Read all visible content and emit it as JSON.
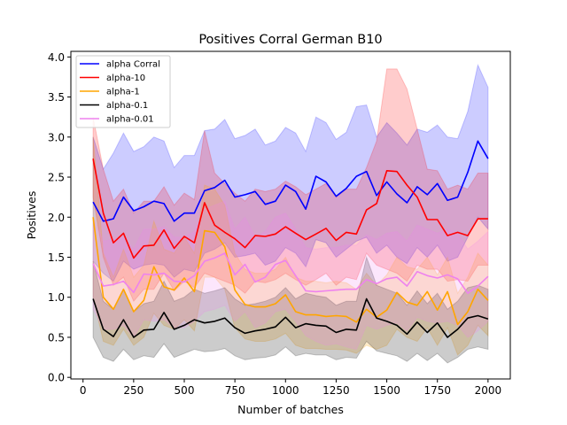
{
  "chart_data": {
    "type": "line",
    "title": "Positives Corral German B10",
    "xlabel": "Number of batches",
    "ylabel": "Positives",
    "xlim": [
      -60,
      2110
    ],
    "ylim": [
      -0.02,
      4.07
    ],
    "xticks": [
      0,
      250,
      500,
      750,
      1000,
      1250,
      1500,
      1750,
      2000
    ],
    "yticks": [
      0.0,
      0.5,
      1.0,
      1.5,
      2.0,
      2.5,
      3.0,
      3.5,
      4.0
    ],
    "xtick_labels": [
      "0",
      "250",
      "500",
      "750",
      "1000",
      "1250",
      "1500",
      "1750",
      "2000"
    ],
    "ytick_labels": [
      "0.0",
      "0.5",
      "1.0",
      "1.5",
      "2.0",
      "2.5",
      "3.0",
      "3.5",
      "4.0"
    ],
    "grid": false,
    "legend_position": "upper-left",
    "x": [
      50,
      100,
      150,
      200,
      250,
      300,
      350,
      400,
      450,
      500,
      550,
      600,
      650,
      700,
      750,
      800,
      850,
      900,
      950,
      1000,
      1050,
      1100,
      1150,
      1200,
      1250,
      1300,
      1350,
      1400,
      1450,
      1500,
      1550,
      1600,
      1650,
      1700,
      1750,
      1800,
      1850,
      1900,
      1950,
      2000
    ],
    "series": [
      {
        "name": "alpha Corral",
        "color": "#0000ff",
        "values": [
          2.19,
          1.95,
          1.98,
          2.25,
          2.08,
          2.13,
          2.2,
          2.17,
          1.95,
          2.05,
          2.05,
          2.33,
          2.37,
          2.46,
          2.25,
          2.28,
          2.32,
          2.16,
          2.2,
          2.4,
          2.32,
          2.1,
          2.51,
          2.44,
          2.26,
          2.36,
          2.51,
          2.57,
          2.27,
          2.44,
          2.29,
          2.18,
          2.38,
          2.28,
          2.42,
          2.21,
          2.25,
          2.56,
          2.95,
          2.73
        ],
        "upper": [
          3.0,
          2.6,
          2.8,
          3.05,
          2.82,
          2.88,
          3.0,
          2.95,
          2.62,
          2.77,
          2.77,
          3.08,
          3.1,
          3.22,
          2.98,
          3.02,
          3.1,
          2.9,
          2.95,
          3.12,
          3.05,
          2.82,
          3.25,
          3.18,
          2.97,
          3.06,
          3.38,
          3.4,
          3.0,
          3.18,
          3.05,
          2.9,
          3.1,
          3.06,
          3.15,
          3.0,
          2.98,
          3.32,
          3.9,
          3.62
        ],
        "lower": [
          1.45,
          1.3,
          1.2,
          1.45,
          1.35,
          1.4,
          1.42,
          1.4,
          1.25,
          1.35,
          1.32,
          1.55,
          1.6,
          1.68,
          1.5,
          1.52,
          1.55,
          1.4,
          1.45,
          1.62,
          1.55,
          1.38,
          1.72,
          1.68,
          1.5,
          1.6,
          1.7,
          1.75,
          1.55,
          1.65,
          1.5,
          1.42,
          1.62,
          1.5,
          1.65,
          1.45,
          1.5,
          1.75,
          2.0,
          1.85
        ]
      },
      {
        "name": "alpha-10",
        "color": "#ff0000",
        "values": [
          2.73,
          2.05,
          1.68,
          1.8,
          1.49,
          1.64,
          1.65,
          1.84,
          1.61,
          1.76,
          1.68,
          2.18,
          1.9,
          1.81,
          1.73,
          1.62,
          1.77,
          1.76,
          1.79,
          1.88,
          1.8,
          1.72,
          1.79,
          1.86,
          1.71,
          1.81,
          1.79,
          2.09,
          2.17,
          2.58,
          2.57,
          2.4,
          2.25,
          1.97,
          1.97,
          1.77,
          1.81,
          1.77,
          1.98,
          1.98
        ],
        "upper": [
          3.25,
          2.6,
          2.2,
          2.35,
          2.05,
          2.2,
          2.2,
          2.38,
          2.15,
          2.3,
          2.22,
          3.08,
          2.55,
          2.42,
          2.3,
          2.2,
          2.35,
          2.32,
          2.35,
          2.45,
          2.38,
          2.28,
          2.35,
          2.42,
          2.25,
          2.35,
          2.35,
          2.62,
          2.95,
          3.85,
          3.85,
          3.6,
          3.1,
          2.6,
          2.58,
          2.35,
          2.4,
          2.35,
          2.55,
          2.55
        ],
        "lower": [
          2.25,
          1.5,
          1.15,
          1.25,
          0.95,
          1.1,
          1.1,
          1.3,
          1.08,
          1.2,
          1.12,
          1.3,
          1.25,
          1.2,
          1.15,
          1.05,
          1.2,
          1.18,
          1.22,
          1.3,
          1.22,
          1.15,
          1.22,
          1.3,
          1.15,
          1.25,
          1.22,
          1.55,
          1.4,
          1.35,
          1.3,
          1.2,
          1.4,
          1.35,
          1.35,
          1.2,
          1.22,
          1.2,
          1.4,
          1.4
        ]
      },
      {
        "name": "alpha-1",
        "color": "#ffa500",
        "values": [
          2.0,
          1.0,
          0.85,
          1.1,
          0.82,
          0.96,
          1.38,
          1.13,
          1.09,
          1.24,
          1.07,
          1.83,
          1.81,
          1.63,
          1.09,
          0.91,
          0.88,
          0.88,
          0.92,
          1.03,
          0.82,
          0.78,
          0.78,
          0.76,
          0.77,
          0.76,
          0.69,
          0.85,
          0.75,
          0.84,
          1.06,
          0.94,
          0.9,
          1.07,
          0.84,
          1.07,
          0.66,
          0.82,
          1.1,
          0.96
        ],
        "upper": [
          3.0,
          1.55,
          1.25,
          1.6,
          1.25,
          1.4,
          1.95,
          1.6,
          1.55,
          1.75,
          1.55,
          2.4,
          2.35,
          2.15,
          1.55,
          1.35,
          1.3,
          1.3,
          1.35,
          1.5,
          1.25,
          1.2,
          1.2,
          1.18,
          1.2,
          1.18,
          1.1,
          1.3,
          1.15,
          1.28,
          1.5,
          1.38,
          1.35,
          1.5,
          1.28,
          1.5,
          1.05,
          1.25,
          1.55,
          1.4
        ],
        "lower": [
          1.0,
          0.45,
          0.4,
          0.6,
          0.4,
          0.5,
          0.8,
          0.65,
          0.6,
          0.72,
          0.58,
          1.25,
          1.25,
          1.1,
          0.62,
          0.48,
          0.45,
          0.45,
          0.48,
          0.55,
          0.4,
          0.36,
          0.36,
          0.35,
          0.35,
          0.34,
          0.3,
          0.4,
          0.35,
          0.4,
          0.6,
          0.5,
          0.45,
          0.62,
          0.4,
          0.62,
          0.28,
          0.4,
          0.65,
          0.52
        ]
      },
      {
        "name": "alpha-0.1",
        "color": "#000000",
        "values": [
          0.98,
          0.6,
          0.51,
          0.72,
          0.5,
          0.59,
          0.6,
          0.81,
          0.6,
          0.65,
          0.72,
          0.68,
          0.7,
          0.74,
          0.62,
          0.55,
          0.58,
          0.6,
          0.63,
          0.75,
          0.62,
          0.67,
          0.65,
          0.64,
          0.56,
          0.6,
          0.59,
          0.98,
          0.74,
          0.7,
          0.65,
          0.54,
          0.69,
          0.56,
          0.68,
          0.5,
          0.6,
          0.74,
          0.77,
          0.73
        ],
        "upper": [
          1.45,
          0.95,
          0.85,
          1.1,
          0.82,
          0.92,
          0.95,
          1.2,
          0.95,
          1.0,
          1.1,
          1.05,
          1.08,
          1.12,
          0.98,
          0.9,
          0.92,
          0.95,
          1.0,
          1.12,
          0.98,
          1.05,
          1.02,
          1.0,
          0.9,
          0.95,
          0.95,
          1.5,
          1.15,
          1.1,
          1.05,
          0.9,
          1.08,
          0.92,
          1.05,
          0.85,
          0.95,
          1.12,
          1.15,
          1.1
        ],
        "lower": [
          0.5,
          0.25,
          0.2,
          0.35,
          0.22,
          0.27,
          0.25,
          0.42,
          0.25,
          0.3,
          0.35,
          0.32,
          0.33,
          0.36,
          0.27,
          0.22,
          0.24,
          0.25,
          0.28,
          0.38,
          0.27,
          0.3,
          0.28,
          0.28,
          0.22,
          0.25,
          0.24,
          0.45,
          0.33,
          0.3,
          0.27,
          0.2,
          0.3,
          0.21,
          0.3,
          0.18,
          0.25,
          0.35,
          0.38,
          0.35
        ]
      },
      {
        "name": "alpha-0.01",
        "color": "#ee82ee",
        "values": [
          1.42,
          1.14,
          1.16,
          1.2,
          1.06,
          1.29,
          1.28,
          1.3,
          1.2,
          1.19,
          1.27,
          1.45,
          1.49,
          1.55,
          1.28,
          1.41,
          1.19,
          1.25,
          1.41,
          1.46,
          1.27,
          1.08,
          1.07,
          1.08,
          1.09,
          1.1,
          1.1,
          1.22,
          1.17,
          1.23,
          1.25,
          1.14,
          1.32,
          1.27,
          1.24,
          1.28,
          1.23,
          1.05,
          1.14,
          1.26
        ],
        "upper": [
          2.0,
          1.7,
          1.72,
          1.75,
          1.6,
          1.85,
          1.85,
          1.88,
          1.75,
          1.75,
          1.82,
          2.1,
          2.15,
          2.2,
          1.85,
          2.0,
          1.75,
          1.82,
          2.0,
          2.05,
          1.85,
          1.62,
          1.6,
          1.62,
          1.62,
          1.65,
          1.65,
          1.78,
          1.72,
          1.8,
          1.82,
          1.7,
          1.9,
          1.85,
          1.8,
          1.85,
          1.8,
          1.6,
          1.7,
          1.82
        ],
        "lower": [
          0.85,
          0.6,
          0.6,
          0.65,
          0.5,
          0.72,
          0.7,
          0.72,
          0.62,
          0.62,
          0.7,
          0.82,
          0.85,
          0.9,
          0.7,
          0.82,
          0.62,
          0.68,
          0.82,
          0.85,
          0.7,
          0.52,
          0.45,
          0.4,
          0.42,
          0.38,
          0.35,
          0.65,
          0.6,
          0.65,
          0.68,
          0.58,
          0.75,
          0.7,
          0.68,
          0.7,
          0.65,
          0.5,
          0.58,
          0.7
        ]
      }
    ]
  }
}
